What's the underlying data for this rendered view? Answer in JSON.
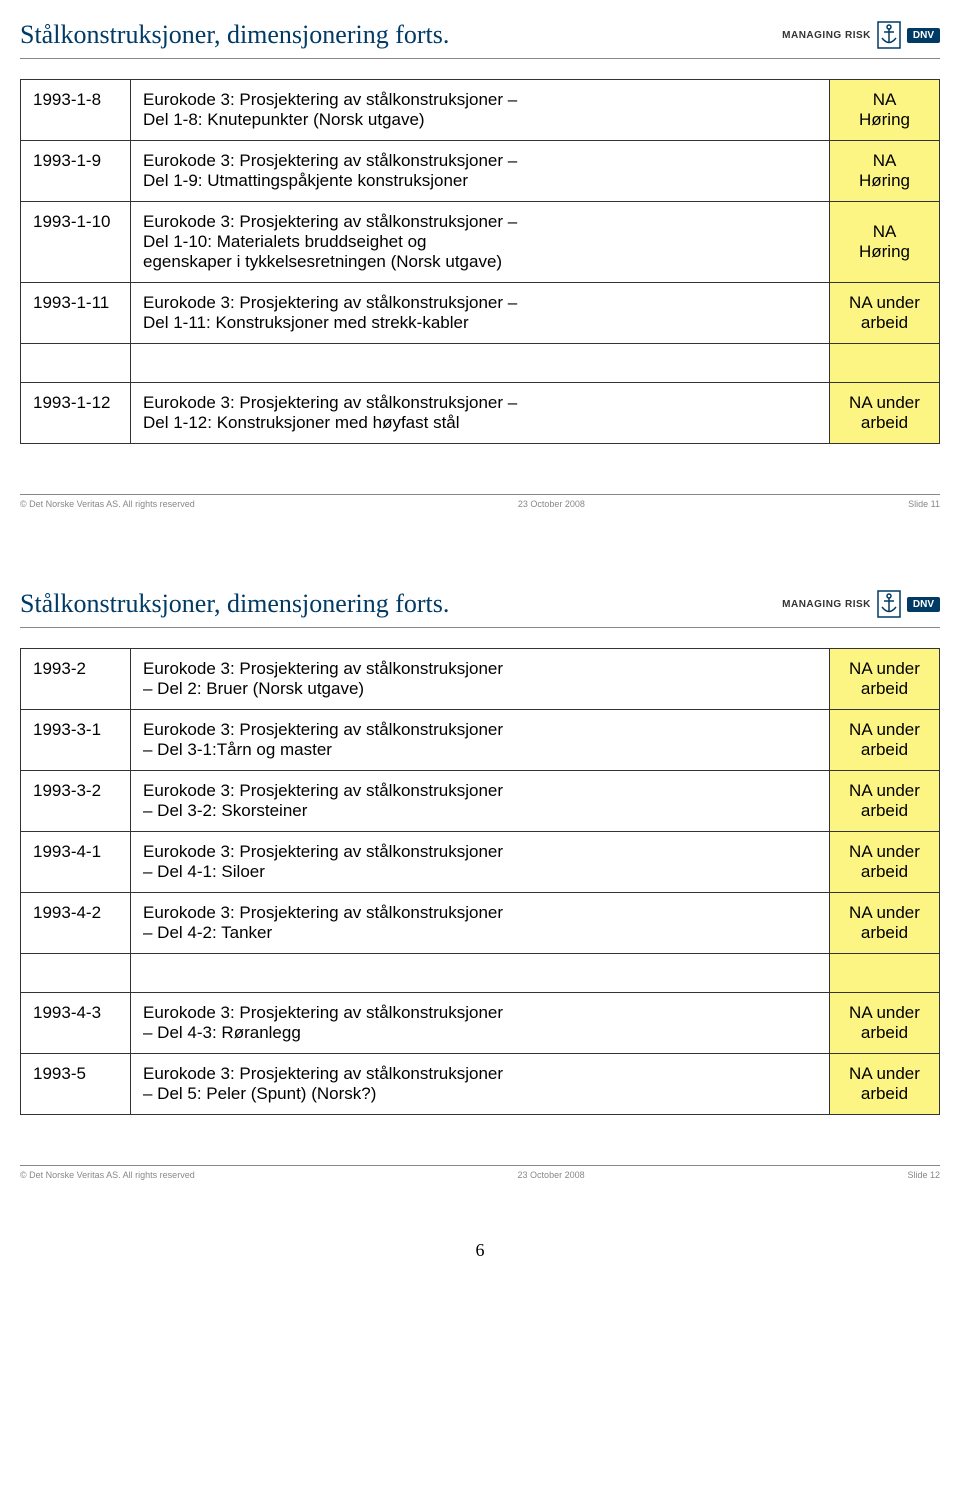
{
  "slide11": {
    "title": "Stålkonstruksjoner, dimensjonering forts.",
    "rows": [
      {
        "code": "1993-1-8",
        "desc": "Eurokode 3: Prosjektering av stålkonstruksjoner –\nDel 1-8: Knutepunkter (Norsk utgave)",
        "status": "NA\nHøring",
        "highlight": true
      },
      {
        "code": "1993-1-9",
        "desc": "Eurokode 3: Prosjektering av stålkonstruksjoner –\nDel 1-9: Utmattingspåkjente konstruksjoner",
        "status": "NA\nHøring",
        "highlight": true
      },
      {
        "code": "1993-1-10",
        "desc": "Eurokode 3: Prosjektering av stålkonstruksjoner –\nDel 1-10: Materialets bruddseighet og\negenskaper i tykkelsesretningen (Norsk utgave)",
        "status": "NA\nHøring",
        "highlight": true
      },
      {
        "code": "1993-1-11",
        "desc": "Eurokode 3: Prosjektering av stålkonstruksjoner –\nDel 1-11: Konstruksjoner med strekk-kabler",
        "status": "NA under\narbeid",
        "highlight": true
      },
      {
        "code": "1993-1-12",
        "desc": "Eurokode 3: Prosjektering av stålkonstruksjoner –\nDel 1-12: Konstruksjoner med høyfast stål",
        "status": "NA under\narbeid",
        "highlight": true,
        "gapBefore": true
      }
    ],
    "footer_left": "© Det Norske Veritas AS. All rights reserved",
    "footer_center": "23 October 2008",
    "footer_right": "Slide 11"
  },
  "slide12": {
    "title": "Stålkonstruksjoner, dimensjonering forts.",
    "rows": [
      {
        "code": "1993-2",
        "desc": "Eurokode 3: Prosjektering av stålkonstruksjoner\n– Del 2: Bruer (Norsk utgave)",
        "status": "NA under\narbeid",
        "highlight": true
      },
      {
        "code": "1993-3-1",
        "desc": "Eurokode 3: Prosjektering av stålkonstruksjoner\n– Del 3-1:Tårn og master",
        "status": "NA under\narbeid",
        "highlight": true
      },
      {
        "code": "1993-3-2",
        "desc": "Eurokode 3: Prosjektering av stålkonstruksjoner\n– Del 3-2: Skorsteiner",
        "status": "NA under\narbeid",
        "highlight": true
      },
      {
        "code": "1993-4-1",
        "desc": "Eurokode 3: Prosjektering av stålkonstruksjoner\n– Del 4-1: Siloer",
        "status": "NA under\narbeid",
        "highlight": true
      },
      {
        "code": "1993-4-2",
        "desc": "Eurokode 3: Prosjektering av stålkonstruksjoner\n– Del 4-2: Tanker",
        "status": "NA under\narbeid",
        "highlight": true
      },
      {
        "code": "1993-4-3",
        "desc": "Eurokode 3: Prosjektering av stålkonstruksjoner\n– Del 4-3: Røranlegg",
        "status": "NA under\narbeid",
        "highlight": true,
        "gapBefore": true
      },
      {
        "code": "1993-5",
        "desc": "Eurokode 3: Prosjektering av stålkonstruksjoner\n– Del 5: Peler (Spunt) (Norsk?)",
        "status": "NA under\narbeid",
        "highlight": true
      }
    ],
    "footer_left": "© Det Norske Veritas AS. All rights reserved",
    "footer_center": "23 October 2008",
    "footer_right": "Slide 12"
  },
  "logo": {
    "managing_risk": "MANAGING RISK",
    "dnv": "DNV"
  },
  "page_number": "6",
  "colors": {
    "title": "#003a65",
    "highlight_bg": "#fcf584",
    "border": "#333333",
    "footer_text": "#888888"
  }
}
